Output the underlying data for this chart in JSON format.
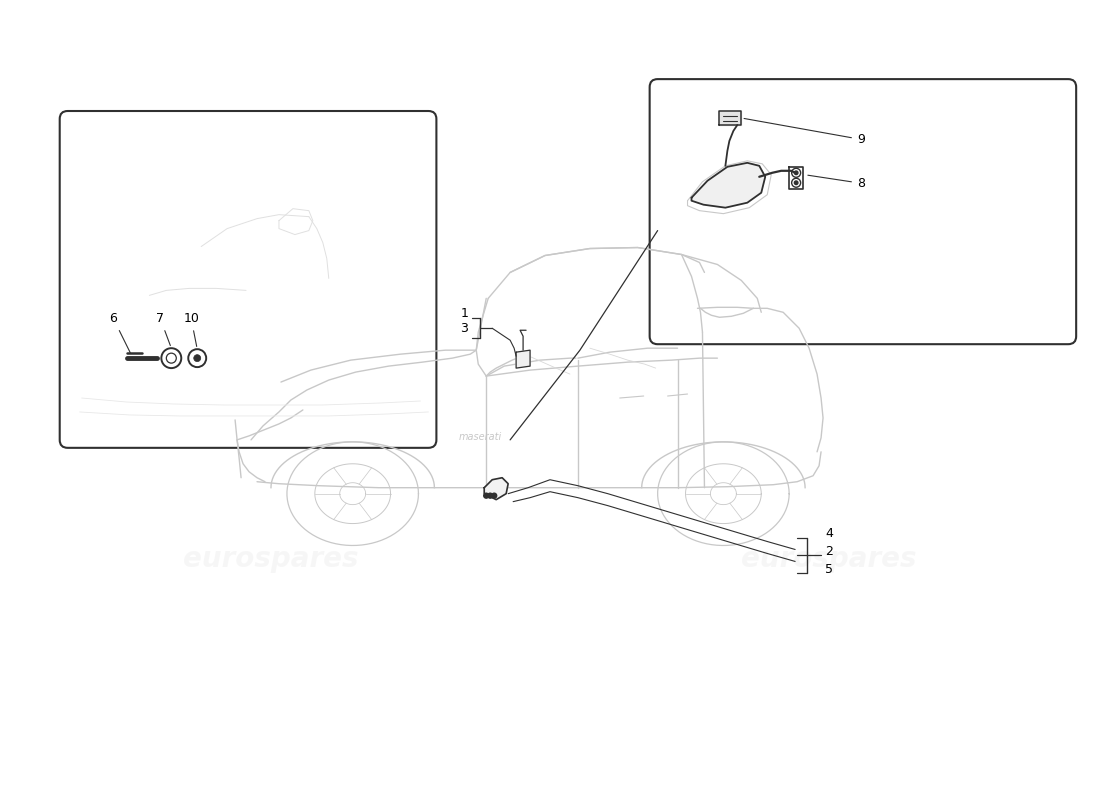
{
  "bg_color": "#ffffff",
  "line_color": "#c8c8c8",
  "dark_color": "#303030",
  "text_color": "#000000",
  "wm_color": "#d8d8d8",
  "wm_text": "eurospares",
  "figsize": [
    11.0,
    8.0
  ],
  "dpi": 100
}
